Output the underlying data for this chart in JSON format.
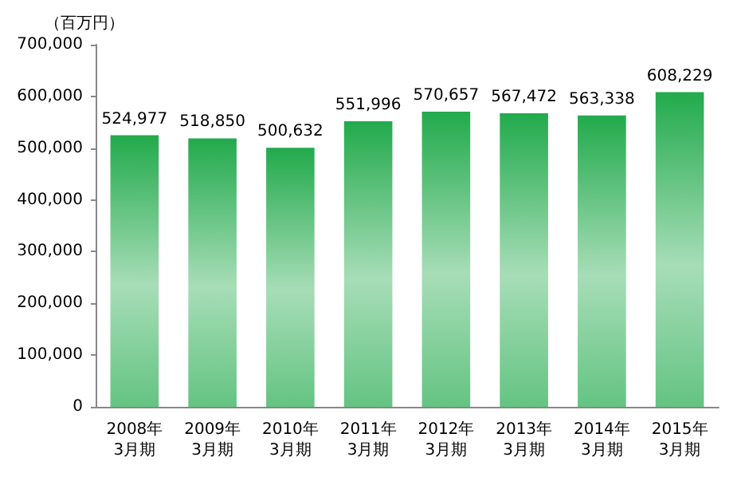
{
  "chart_data": {
    "type": "bar",
    "ylabel": "（百万円）",
    "categories": [
      "2008年\n3月期",
      "2009年\n3月期",
      "2010年\n3月期",
      "2011年\n3月期",
      "2012年\n3月期",
      "2013年\n3月期",
      "2014年\n3月期",
      "2015年\n3月期"
    ],
    "values": [
      524977,
      518850,
      500632,
      551996,
      570657,
      567472,
      563338,
      608229
    ],
    "value_labels": [
      "524,977",
      "518,850",
      "500,632",
      "551,996",
      "570,657",
      "567,472",
      "563,338",
      "608,229"
    ],
    "color": "#22aa4c",
    "ylim": [
      0,
      700000
    ],
    "yticks": [
      0,
      {
        "value": 100000,
        "label": "100,000"
      },
      {
        "value": 200000,
        "label": "200,000"
      },
      {
        "value": 300000,
        "label": "300,000"
      },
      {
        "value": 400000,
        "label": "400,000"
      },
      {
        "value": 500000,
        "label": "500,000"
      },
      {
        "value": 600000,
        "label": "600,000"
      },
      {
        "value": 700000,
        "label": "700,000"
      }
    ],
    "grid": false
  }
}
